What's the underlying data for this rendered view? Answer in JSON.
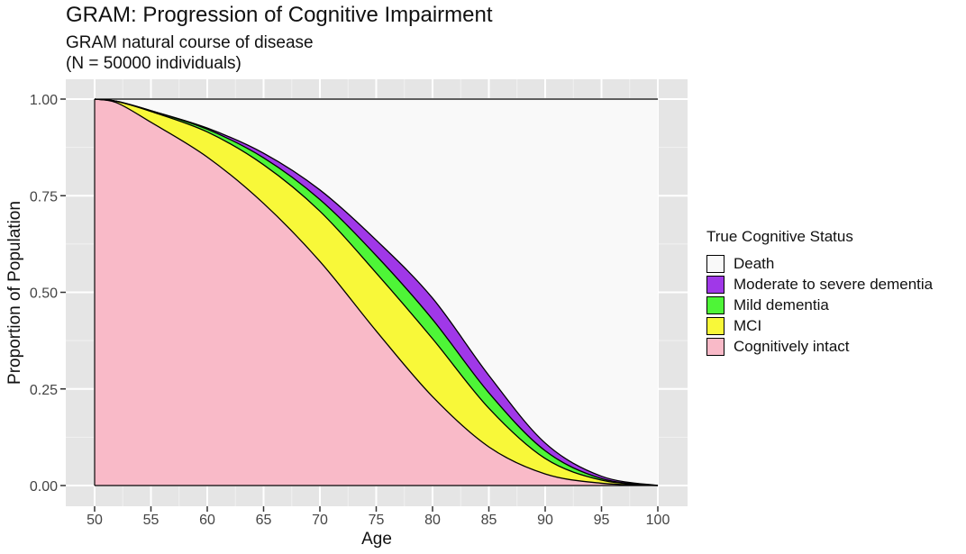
{
  "chart_data": {
    "type": "area",
    "title": "GRAM: Progression of Cognitive Impairment",
    "subtitle_lines": [
      "GRAM natural course of disease",
      "(N = 50000 individuals)"
    ],
    "xlabel": "Age",
    "ylabel": "Proportion of Population",
    "xlim": [
      50,
      100
    ],
    "ylim": [
      0,
      1
    ],
    "x_ticks": [
      50,
      55,
      60,
      65,
      70,
      75,
      80,
      85,
      90,
      95,
      100
    ],
    "y_ticks": [
      0,
      0.25,
      0.5,
      0.75,
      1
    ],
    "y_tick_labels": [
      "0.00",
      "0.25",
      "0.50",
      "0.75",
      "1.00"
    ],
    "stacked": true,
    "grid": true,
    "legend": {
      "title": "True Cognitive Status",
      "position": "right",
      "entries": [
        "Death",
        "Moderate to severe dementia",
        "Mild dementia",
        "MCI",
        "Cognitively intact"
      ]
    },
    "x": [
      50,
      52,
      55,
      60,
      65,
      70,
      75,
      80,
      85,
      90,
      95,
      100
    ],
    "series": [
      {
        "name": "Cognitively intact",
        "color": "#f9bac8",
        "values": [
          1.0,
          0.99,
          0.94,
          0.85,
          0.73,
          0.58,
          0.4,
          0.23,
          0.1,
          0.03,
          0.006,
          0.0
        ]
      },
      {
        "name": "MCI",
        "color": "#f8f839",
        "values": [
          0.0,
          0.004,
          0.028,
          0.065,
          0.1,
          0.13,
          0.15,
          0.15,
          0.1,
          0.04,
          0.008,
          0.0
        ]
      },
      {
        "name": "Mild dementia",
        "color": "#4ef537",
        "values": [
          0.0,
          0.0,
          0.002,
          0.007,
          0.018,
          0.03,
          0.045,
          0.05,
          0.04,
          0.02,
          0.004,
          0.0
        ]
      },
      {
        "name": "Moderate to severe dementia",
        "color": "#a038e8",
        "values": [
          0.0,
          0.0,
          0.0,
          0.003,
          0.012,
          0.025,
          0.04,
          0.055,
          0.045,
          0.02,
          0.006,
          0.0
        ]
      },
      {
        "name": "Death",
        "color": "#f9f9f9",
        "values": [
          0.0,
          0.006,
          0.03,
          0.075,
          0.14,
          0.235,
          0.365,
          0.515,
          0.715,
          0.89,
          0.976,
          1.0
        ]
      }
    ]
  }
}
